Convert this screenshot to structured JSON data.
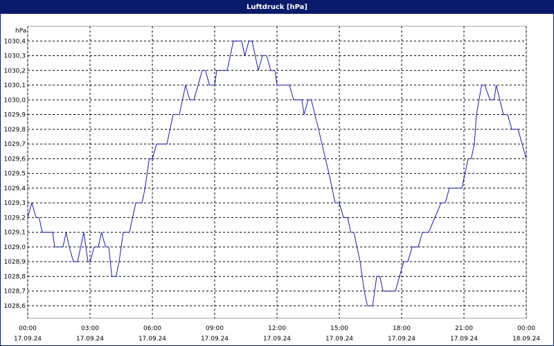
{
  "window_title": "Luftdruck [hPa]",
  "chart_data": {
    "type": "line",
    "ylabel": "hPa",
    "x": [
      0.0,
      0.2,
      0.4,
      0.55,
      0.7,
      1.2,
      1.3,
      1.7,
      1.85,
      2.0,
      2.2,
      2.4,
      2.7,
      2.9,
      3.0,
      3.2,
      3.4,
      3.55,
      3.75,
      3.9,
      4.05,
      4.25,
      4.4,
      4.6,
      4.9,
      5.2,
      5.5,
      5.65,
      5.85,
      6.0,
      6.2,
      6.7,
      7.0,
      7.3,
      7.6,
      7.8,
      8.0,
      8.4,
      8.55,
      8.75,
      9.0,
      9.1,
      9.6,
      9.9,
      10.3,
      10.45,
      10.65,
      10.8,
      11.1,
      11.3,
      11.5,
      11.7,
      11.9,
      12.0,
      12.6,
      12.8,
      13.2,
      13.3,
      13.5,
      13.65,
      14.0,
      14.5,
      14.8,
      15.0,
      15.2,
      15.4,
      15.55,
      15.7,
      16.0,
      16.2,
      16.35,
      16.6,
      16.8,
      16.95,
      17.1,
      17.7,
      17.9,
      18.1,
      18.3,
      18.5,
      18.8,
      19.0,
      19.3,
      19.6,
      19.9,
      20.1,
      20.3,
      20.9,
      21.2,
      21.35,
      21.5,
      21.6,
      21.85,
      22.0,
      22.25,
      22.45,
      22.55,
      22.9,
      23.1,
      23.3,
      23.6,
      24.0
    ],
    "series": [
      {
        "name": "Luftdruck",
        "color": "#1a1aa0",
        "values": [
          1029.2,
          1029.3,
          1029.2,
          1029.2,
          1029.1,
          1029.1,
          1029.0,
          1029.0,
          1029.1,
          1029.0,
          1028.9,
          1028.9,
          1029.1,
          1028.9,
          1028.9,
          1029.0,
          1029.0,
          1029.1,
          1029.0,
          1029.0,
          1028.8,
          1028.8,
          1028.9,
          1029.1,
          1029.1,
          1029.3,
          1029.3,
          1029.4,
          1029.6,
          1029.6,
          1029.7,
          1029.7,
          1029.9,
          1029.9,
          1030.1,
          1030.0,
          1030.0,
          1030.2,
          1030.2,
          1030.1,
          1030.1,
          1030.2,
          1030.2,
          1030.4,
          1030.4,
          1030.3,
          1030.4,
          1030.4,
          1030.2,
          1030.3,
          1030.3,
          1030.2,
          1030.2,
          1030.1,
          1030.1,
          1030.0,
          1030.0,
          1029.9,
          1030.0,
          1030.0,
          1029.8,
          1029.5,
          1029.3,
          1029.3,
          1029.2,
          1029.2,
          1029.1,
          1029.1,
          1028.9,
          1028.7,
          1028.6,
          1028.6,
          1028.8,
          1028.8,
          1028.7,
          1028.7,
          1028.8,
          1028.9,
          1028.9,
          1029.0,
          1029.0,
          1029.1,
          1029.1,
          1029.2,
          1029.3,
          1029.3,
          1029.4,
          1029.4,
          1029.6,
          1029.6,
          1029.7,
          1029.9,
          1030.1,
          1030.1,
          1030.0,
          1030.0,
          1030.1,
          1029.9,
          1029.9,
          1029.8,
          1029.8,
          1029.6
        ]
      }
    ],
    "xlim": [
      0,
      24
    ],
    "ylim": [
      1028.515,
      1030.5
    ],
    "xticks": [
      {
        "value": 0,
        "label": "00:00"
      },
      {
        "value": 3,
        "label": "03:00"
      },
      {
        "value": 6,
        "label": "06:00"
      },
      {
        "value": 9,
        "label": "09:00"
      },
      {
        "value": 12,
        "label": "12:00"
      },
      {
        "value": 15,
        "label": "15:00"
      },
      {
        "value": 18,
        "label": "18:00"
      },
      {
        "value": 21,
        "label": "21:00"
      },
      {
        "value": 24,
        "label": "00:00"
      }
    ],
    "xtick_dates": [
      "17.09.24",
      "17.09.24",
      "17.09.24",
      "17.09.24",
      "17.09.24",
      "17.09.24",
      "17.09.24",
      "17.09.24",
      "18.09.24"
    ],
    "yticks": [
      {
        "value": 1028.6,
        "label": "1028,6"
      },
      {
        "value": 1028.7,
        "label": "1028,7"
      },
      {
        "value": 1028.8,
        "label": "1028,8"
      },
      {
        "value": 1028.9,
        "label": "1028,9"
      },
      {
        "value": 1029.0,
        "label": "1029,0"
      },
      {
        "value": 1029.1,
        "label": "1029,1"
      },
      {
        "value": 1029.2,
        "label": "1029,2"
      },
      {
        "value": 1029.3,
        "label": "1029,3"
      },
      {
        "value": 1029.4,
        "label": "1029,4"
      },
      {
        "value": 1029.5,
        "label": "1029,5"
      },
      {
        "value": 1029.6,
        "label": "1029,6"
      },
      {
        "value": 1029.7,
        "label": "1029,7"
      },
      {
        "value": 1029.8,
        "label": "1029,8"
      },
      {
        "value": 1029.9,
        "label": "1029,9"
      },
      {
        "value": 1030.0,
        "label": "1030,0"
      },
      {
        "value": 1030.1,
        "label": "1030,1"
      },
      {
        "value": 1030.2,
        "label": "1030,2"
      },
      {
        "value": 1030.3,
        "label": "1030,3"
      },
      {
        "value": 1030.4,
        "label": "1030,4"
      }
    ],
    "grid": true
  }
}
